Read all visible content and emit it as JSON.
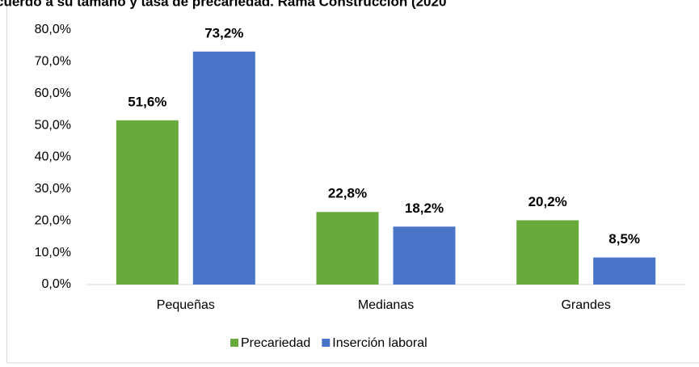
{
  "chart_data": {
    "type": "bar",
    "title": "cuerdo a su tamaño y tasa de precariedad. Rama Construcción (2020",
    "categories": [
      "Pequeñas",
      "Medianas",
      "Grandes"
    ],
    "series": [
      {
        "name": "Precariedad",
        "color": "#6aaa3c",
        "values": [
          51.6,
          22.8,
          20.2
        ],
        "value_labels": [
          "51,6%",
          "22,8%",
          "20,2%"
        ]
      },
      {
        "name": "Inserción laboral",
        "color": "#4a74c8",
        "values": [
          73.2,
          18.2,
          8.5
        ],
        "value_labels": [
          "73,2%",
          "18,2%",
          "8,5%"
        ]
      }
    ],
    "ylim": [
      0,
      80
    ],
    "yticks": [
      {
        "value": 0,
        "label": "0,0%"
      },
      {
        "value": 10,
        "label": "10,0%"
      },
      {
        "value": 20,
        "label": "20,0%"
      },
      {
        "value": 30,
        "label": "30,0%"
      },
      {
        "value": 40,
        "label": "40,0%"
      },
      {
        "value": 50,
        "label": "50,0%"
      },
      {
        "value": 60,
        "label": "60,0%"
      },
      {
        "value": 70,
        "label": "70,0%"
      },
      {
        "value": 80,
        "label": "80,0%"
      }
    ],
    "grid": false,
    "legend": "bottom"
  }
}
